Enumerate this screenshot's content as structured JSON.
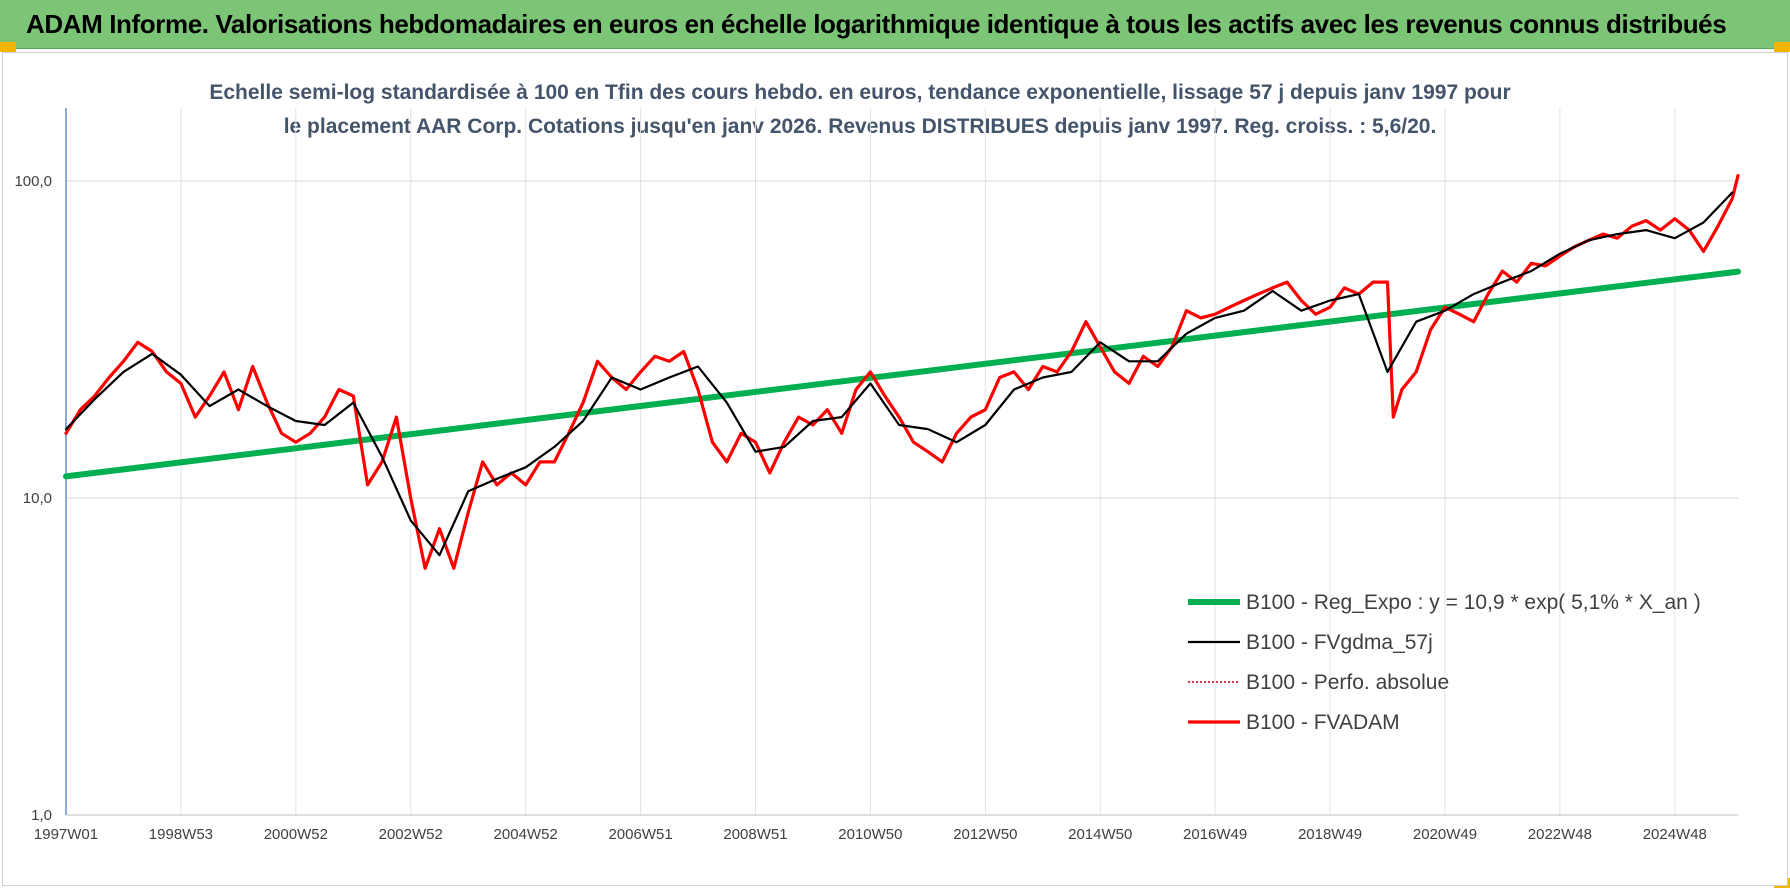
{
  "header": {
    "title": "ADAM Informe. Valorisations hebdomadaires en euros en échelle logarithmique identique à tous les actifs avec les revenus connus distribués"
  },
  "chart_data": {
    "type": "line",
    "title": "Echelle semi-log standardisée à 100 en Tfin des cours hebdo. en euros, tendance exponentielle, lissage 57 j depuis janv 1997 pour le placement AAR Corp. Cotations jusqu'en janv 2026. Revenus DISTRIBUES depuis janv 1997. Reg. croiss. : 5,6/20.",
    "y_scale": "log",
    "ylim": [
      1,
      170
    ],
    "xlim": [
      1997.0,
      2026.1
    ],
    "grid": true,
    "legend_position": "bottom-right",
    "y_ticks": [
      {
        "value": 1,
        "label": "1,0"
      },
      {
        "value": 10,
        "label": "10,0"
      },
      {
        "value": 100,
        "label": "100,0"
      }
    ],
    "x_ticks": [
      {
        "value": 1997.0,
        "label": "1997W01"
      },
      {
        "value": 1999.0,
        "label": "1998W53"
      },
      {
        "value": 2001.0,
        "label": "2000W52"
      },
      {
        "value": 2003.0,
        "label": "2002W52"
      },
      {
        "value": 2005.0,
        "label": "2004W52"
      },
      {
        "value": 2007.0,
        "label": "2006W51"
      },
      {
        "value": 2009.0,
        "label": "2008W51"
      },
      {
        "value": 2011.0,
        "label": "2010W50"
      },
      {
        "value": 2013.0,
        "label": "2012W50"
      },
      {
        "value": 2015.0,
        "label": "2014W50"
      },
      {
        "value": 2017.0,
        "label": "2016W49"
      },
      {
        "value": 2019.0,
        "label": "2018W49"
      },
      {
        "value": 2021.0,
        "label": "2020W49"
      },
      {
        "value": 2023.0,
        "label": "2022W48"
      },
      {
        "value": 2025.0,
        "label": "2024W48"
      }
    ],
    "series": [
      {
        "name": "B100 - Reg_Expo : y = 10,9 * exp( 5,1% *  X_an )",
        "color": "#00b050",
        "x": [
          1997.0,
          2026.1
        ],
        "values": [
          11.7,
          51.8
        ]
      },
      {
        "name": "B100 - FVgdma_57j",
        "color": "#000000",
        "x": [
          1997.0,
          1997.5,
          1998.0,
          1998.5,
          1999.0,
          1999.5,
          2000.0,
          2000.5,
          2001.0,
          2001.5,
          2002.0,
          2002.5,
          2003.0,
          2003.5,
          2004.0,
          2004.5,
          2005.0,
          2005.5,
          2006.0,
          2006.5,
          2007.0,
          2007.5,
          2008.0,
          2008.5,
          2009.0,
          2009.5,
          2010.0,
          2010.5,
          2011.0,
          2011.5,
          2012.0,
          2012.5,
          2013.0,
          2013.5,
          2014.0,
          2014.5,
          2015.0,
          2015.5,
          2016.0,
          2016.5,
          2017.0,
          2017.5,
          2018.0,
          2018.5,
          2019.0,
          2019.5,
          2020.0,
          2020.5,
          2021.0,
          2021.5,
          2022.0,
          2022.5,
          2023.0,
          2023.5,
          2024.0,
          2024.5,
          2025.0,
          2025.5,
          2026.0
        ],
        "values": [
          16.5,
          20.5,
          25,
          28.5,
          24.5,
          19.5,
          22,
          19.5,
          17.5,
          17,
          20,
          13.5,
          8.5,
          6.6,
          10.5,
          11.5,
          12.5,
          14.5,
          17.5,
          24,
          22,
          24,
          26,
          20,
          14,
          14.5,
          17.5,
          18,
          23,
          17,
          16.5,
          15,
          17,
          22,
          24,
          25,
          31,
          27,
          27,
          33,
          37,
          39,
          45,
          39,
          42,
          44,
          25,
          36,
          39,
          44,
          48,
          52,
          59,
          65,
          68,
          70,
          66,
          74,
          92
        ]
      },
      {
        "name": "B100 - Perfo. absolue",
        "color": "#c00000",
        "x": [],
        "values": []
      },
      {
        "name": "B100 - FVADAM",
        "color": "#ff0000",
        "x": [
          1997.0,
          1997.25,
          1997.5,
          1997.75,
          1998.0,
          1998.25,
          1998.5,
          1998.75,
          1999.0,
          1999.25,
          1999.5,
          1999.75,
          2000.0,
          2000.25,
          2000.5,
          2000.75,
          2001.0,
          2001.25,
          2001.5,
          2001.75,
          2002.0,
          2002.25,
          2002.5,
          2002.75,
          2003.0,
          2003.25,
          2003.5,
          2003.75,
          2004.0,
          2004.25,
          2004.5,
          2004.75,
          2005.0,
          2005.25,
          2005.5,
          2005.75,
          2006.0,
          2006.25,
          2006.5,
          2006.75,
          2007.0,
          2007.25,
          2007.5,
          2007.75,
          2008.0,
          2008.25,
          2008.5,
          2008.75,
          2009.0,
          2009.25,
          2009.5,
          2009.75,
          2010.0,
          2010.25,
          2010.5,
          2010.75,
          2011.0,
          2011.25,
          2011.5,
          2011.75,
          2012.0,
          2012.25,
          2012.5,
          2012.75,
          2013.0,
          2013.25,
          2013.5,
          2013.75,
          2014.0,
          2014.25,
          2014.5,
          2014.75,
          2015.0,
          2015.25,
          2015.5,
          2015.75,
          2016.0,
          2016.25,
          2016.5,
          2016.75,
          2017.0,
          2017.25,
          2017.5,
          2017.75,
          2018.0,
          2018.25,
          2018.5,
          2018.75,
          2019.0,
          2019.25,
          2019.5,
          2019.75,
          2020.0,
          2020.1,
          2020.25,
          2020.5,
          2020.75,
          2021.0,
          2021.25,
          2021.5,
          2021.75,
          2022.0,
          2022.25,
          2022.5,
          2022.75,
          2023.0,
          2023.25,
          2023.5,
          2023.75,
          2024.0,
          2024.25,
          2024.5,
          2024.75,
          2025.0,
          2025.25,
          2025.5,
          2025.75,
          2026.0,
          2026.1
        ],
        "values": [
          16,
          19,
          21,
          24,
          27,
          31,
          29,
          25,
          23,
          18,
          21,
          25,
          19,
          26,
          20,
          16,
          15,
          16,
          18,
          22,
          21,
          11,
          13,
          18,
          10,
          6,
          8,
          6,
          9,
          13,
          11,
          12,
          11,
          13,
          13,
          16,
          20,
          27,
          24,
          22,
          25,
          28,
          27,
          29,
          22,
          15,
          13,
          16,
          15,
          12,
          15,
          18,
          17,
          19,
          16,
          22,
          25,
          21,
          18,
          15,
          14,
          13,
          16,
          18,
          19,
          24,
          25,
          22,
          26,
          25,
          29,
          36,
          30,
          25,
          23,
          28,
          26,
          30,
          39,
          37,
          38,
          40,
          42,
          44,
          46,
          48,
          42,
          38,
          40,
          46,
          44,
          48,
          48,
          18,
          22,
          25,
          34,
          40,
          38,
          36,
          44,
          52,
          48,
          55,
          54,
          58,
          62,
          65,
          68,
          66,
          72,
          75,
          70,
          76,
          70,
          60,
          72,
          88,
          104
        ]
      }
    ]
  }
}
